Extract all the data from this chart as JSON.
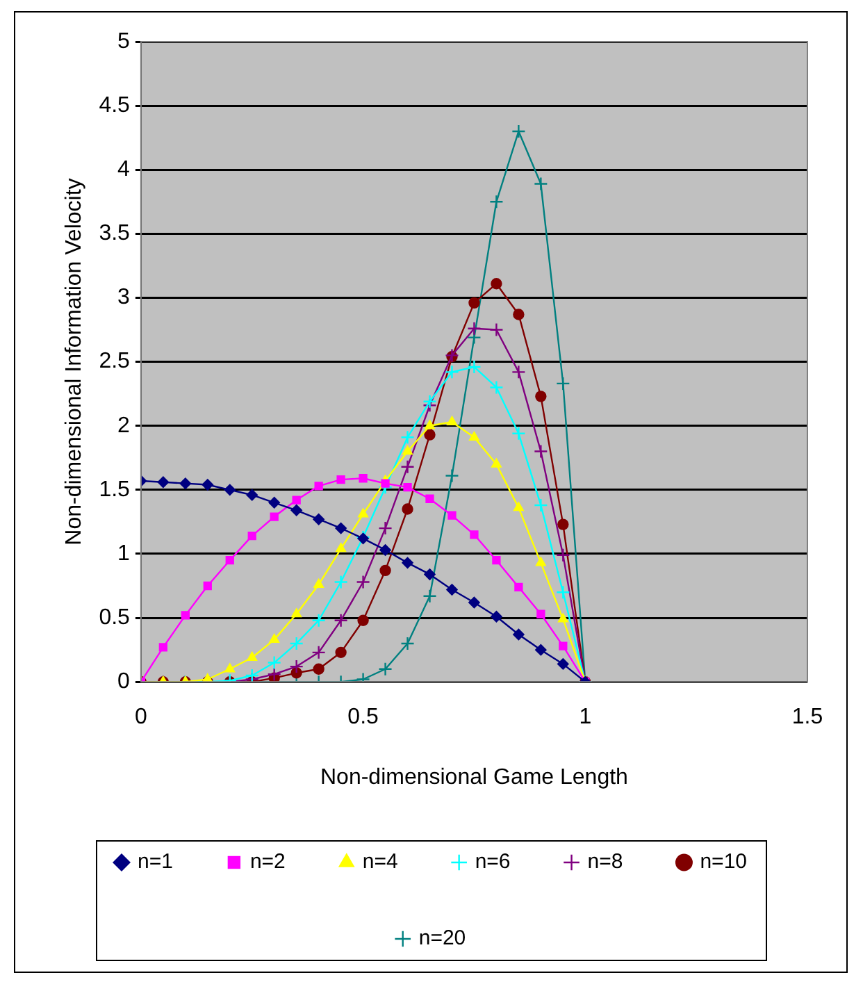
{
  "chart_data": {
    "type": "line",
    "xlabel": "Non-dimensional Game Length",
    "ylabel": "Non-dimensional Information Velocity",
    "x": [
      0,
      0.05,
      0.1,
      0.15,
      0.2,
      0.25,
      0.3,
      0.35,
      0.4,
      0.45,
      0.5,
      0.55,
      0.6,
      0.65,
      0.7,
      0.75,
      0.8,
      0.85,
      0.9,
      0.95,
      1
    ],
    "series": [
      {
        "name": "n=1",
        "color": "#000080",
        "marker": "diamond",
        "values": [
          1.57,
          1.56,
          1.55,
          1.54,
          1.5,
          1.46,
          1.4,
          1.34,
          1.27,
          1.2,
          1.12,
          1.03,
          0.93,
          0.84,
          0.72,
          0.62,
          0.51,
          0.37,
          0.25,
          0.14,
          0
        ]
      },
      {
        "name": "n=2",
        "color": "#ff00ff",
        "marker": "square",
        "values": [
          0,
          0.27,
          0.52,
          0.75,
          0.95,
          1.14,
          1.29,
          1.42,
          1.53,
          1.58,
          1.59,
          1.55,
          1.52,
          1.43,
          1.3,
          1.15,
          0.95,
          0.74,
          0.53,
          0.28,
          0
        ]
      },
      {
        "name": "n=4",
        "color": "#ffff00",
        "marker": "triangle",
        "values": [
          0,
          0,
          0,
          0.02,
          0.1,
          0.19,
          0.33,
          0.53,
          0.76,
          1.04,
          1.31,
          1.57,
          1.8,
          2.0,
          2.03,
          1.91,
          1.7,
          1.36,
          0.93,
          0.49,
          0
        ]
      },
      {
        "name": "n=6",
        "color": "#00ffff",
        "marker": "cross",
        "values": [
          null,
          null,
          0,
          0,
          0.01,
          0.05,
          0.15,
          0.3,
          0.48,
          0.78,
          1.13,
          1.52,
          1.91,
          2.19,
          2.42,
          2.46,
          2.3,
          1.94,
          1.38,
          0.7,
          0
        ]
      },
      {
        "name": "n=8",
        "color": "#800080",
        "marker": "cross",
        "values": [
          0,
          0,
          0,
          0,
          0,
          0.02,
          0.06,
          0.12,
          0.23,
          0.48,
          0.78,
          1.2,
          1.68,
          2.16,
          2.55,
          2.76,
          2.75,
          2.42,
          1.8,
          0.99,
          0
        ]
      },
      {
        "name": "n=10",
        "color": "#800000",
        "marker": "circle",
        "values": [
          0,
          0,
          0,
          0,
          0,
          0,
          0.03,
          0.07,
          0.1,
          0.23,
          0.48,
          0.87,
          1.35,
          1.93,
          2.54,
          2.96,
          3.11,
          2.87,
          2.23,
          1.23,
          0
        ]
      },
      {
        "name": "n=20",
        "color": "#008080",
        "marker": "cross",
        "values": [
          0,
          0,
          0,
          0,
          0,
          0,
          0,
          0,
          0,
          0,
          0.02,
          0.1,
          0.3,
          0.67,
          1.61,
          2.69,
          3.75,
          4.3,
          3.89,
          2.33,
          0
        ]
      }
    ],
    "xlim": [
      0,
      1.5
    ],
    "xticks": [
      0,
      0.5,
      1,
      1.5
    ],
    "ylim": [
      0,
      5
    ],
    "yticks": [
      0,
      0.5,
      1,
      1.5,
      2,
      2.5,
      3,
      3.5,
      4,
      4.5,
      5
    ],
    "grid": "y",
    "legend": "bottom",
    "line_style": "solid"
  }
}
